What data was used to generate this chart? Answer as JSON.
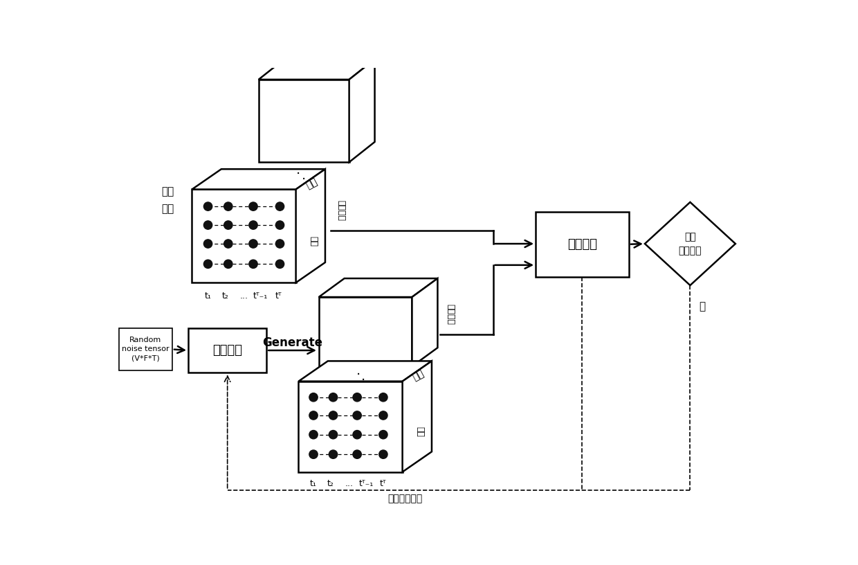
{
  "bg_color": "#ffffff",
  "node_color": "#111111",
  "labels": {
    "real_sample": "真实\n样本",
    "feature_top": "特征",
    "road_top": "口路",
    "feature_bot": "特征",
    "road_bot": "口路",
    "sample_count_top": "样本数量",
    "sample_count_bot": "样本数量",
    "discriminator": "判别网络",
    "is_real": "是否\n真实样本",
    "generator_input": "Random\nnoise tensor\n(V*F*T)",
    "generator": "生成网络",
    "generate_label": "Generate",
    "time_labels": [
      "t₁",
      "t₂",
      "...",
      "tᵀ₋₁",
      "tᵀ"
    ],
    "gradient_label": "梯度反向传播",
    "yes_label": "是"
  },
  "figsize": [
    12.4,
    8.16
  ],
  "dpi": 100
}
